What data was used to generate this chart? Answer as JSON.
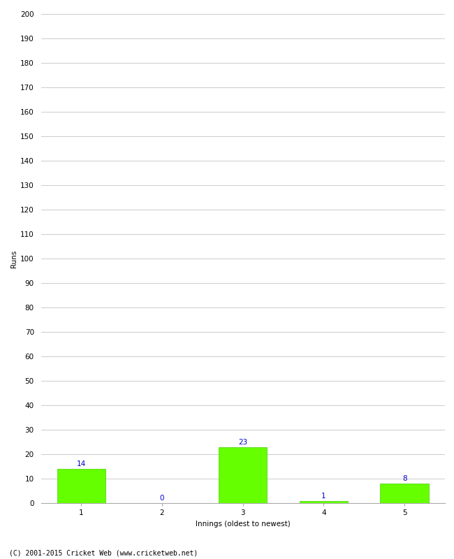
{
  "categories": [
    1,
    2,
    3,
    4,
    5
  ],
  "values": [
    14,
    0,
    23,
    1,
    8
  ],
  "bar_color": "#66ff00",
  "bar_edge_color": "#44cc00",
  "xlabel": "Innings (oldest to newest)",
  "ylabel": "Runs",
  "ylim": [
    0,
    200
  ],
  "yticks": [
    0,
    10,
    20,
    30,
    40,
    50,
    60,
    70,
    80,
    90,
    100,
    110,
    120,
    130,
    140,
    150,
    160,
    170,
    180,
    190,
    200
  ],
  "label_color": "#0000cc",
  "label_fontsize": 7.5,
  "axis_tick_fontsize": 7.5,
  "ylabel_fontsize": 7.5,
  "xlabel_fontsize": 7.5,
  "footer_text": "(C) 2001-2015 Cricket Web (www.cricketweb.net)",
  "footer_fontsize": 7,
  "background_color": "#ffffff",
  "grid_color": "#cccccc",
  "bar_width": 0.6
}
